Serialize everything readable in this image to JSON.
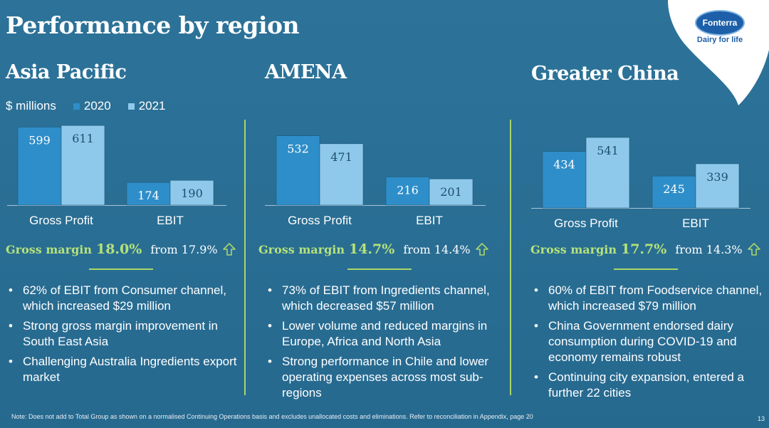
{
  "title": "Performance by region",
  "logo": {
    "brand": "Fonterra",
    "tagline": "Dairy for life"
  },
  "legend": {
    "unit": "$ millions",
    "series": [
      "2020",
      "2021"
    ]
  },
  "colors": {
    "bar2020": "#2e8ec9",
    "bar2021": "#8ec9ec",
    "accent": "#a8d66a",
    "background": "#2a6f97"
  },
  "chart_data": [
    {
      "type": "bar",
      "title": "Asia Pacific",
      "categories": [
        "Gross Profit",
        "EBIT"
      ],
      "series": [
        {
          "name": "2020",
          "values": [
            599,
            174
          ]
        },
        {
          "name": "2021",
          "values": [
            611,
            190
          ]
        }
      ],
      "ylabel": "$ millions",
      "ylim": [
        0,
        640
      ]
    },
    {
      "type": "bar",
      "title": "AMENA",
      "categories": [
        "Gross Profit",
        "EBIT"
      ],
      "series": [
        {
          "name": "2020",
          "values": [
            532,
            216
          ]
        },
        {
          "name": "2021",
          "values": [
            471,
            201
          ]
        }
      ],
      "ylabel": "$ millions",
      "ylim": [
        0,
        640
      ]
    },
    {
      "type": "bar",
      "title": "Greater China",
      "categories": [
        "Gross Profit",
        "EBIT"
      ],
      "series": [
        {
          "name": "2020",
          "values": [
            434,
            245
          ]
        },
        {
          "name": "2021",
          "values": [
            541,
            339
          ]
        }
      ],
      "ylabel": "$ millions",
      "ylim": [
        0,
        640
      ]
    }
  ],
  "regions": [
    {
      "name": "Asia Pacific",
      "gross_margin_label": "Gross margin",
      "gross_margin": "18.0%",
      "from_text": "from 17.9%",
      "bullets": [
        "62% of EBIT from Consumer channel, which increased $29 million",
        "Strong gross margin improvement in South East Asia",
        "Challenging Australia Ingredients export market"
      ]
    },
    {
      "name": "AMENA",
      "gross_margin_label": "Gross margin",
      "gross_margin": "14.7%",
      "from_text": "from 14.4%",
      "bullets": [
        "73% of EBIT from Ingredients channel, which decreased $57 million",
        "Lower volume and reduced margins in Europe, Africa and North Asia",
        "Strong performance in Chile and lower operating expenses across most sub-regions"
      ]
    },
    {
      "name": "Greater China",
      "gross_margin_label": "Gross margin",
      "gross_margin": "17.7%",
      "from_text": "from 14.3%",
      "bullets": [
        "60% of EBIT from Foodservice channel, which increased $79 million",
        "China Government endorsed dairy consumption during COVID-19 and economy remains robust",
        "Continuing city expansion, entered a further 22 cities"
      ]
    }
  ],
  "footnote": "Note: Does not add to Total Group as shown on a normalised Continuing Operations basis and excludes unallocated costs and eliminations. Refer to reconciliation in Appendix, page 20",
  "page_number": "13"
}
